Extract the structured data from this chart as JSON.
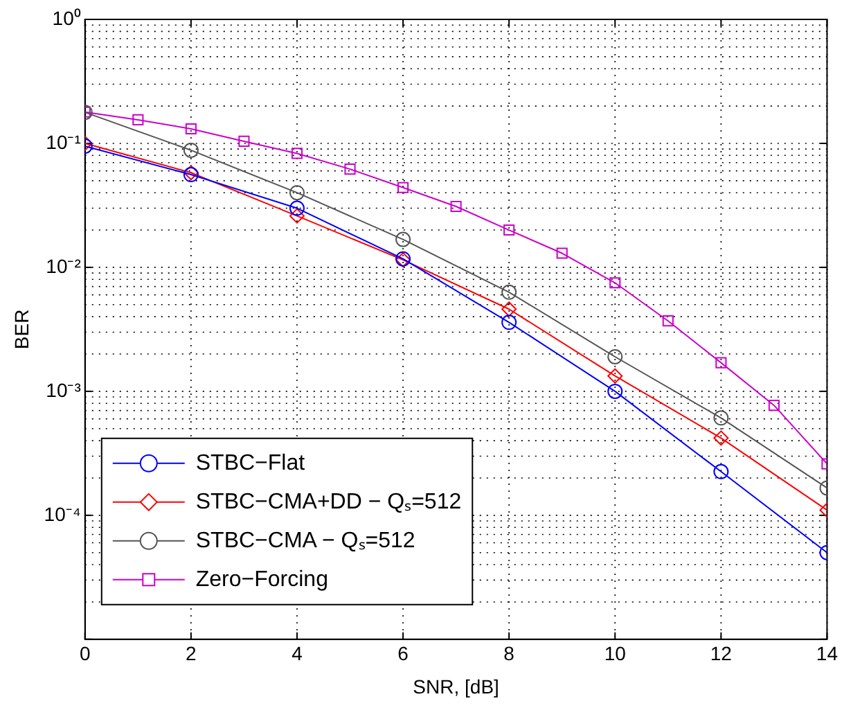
{
  "chart_data": {
    "type": "line",
    "xlabel": "SNR, [dB]",
    "ylabel": "BER",
    "log": "y",
    "grid": true,
    "legend": "bottom left",
    "line_style": "solid",
    "xlim": [
      0,
      14
    ],
    "xticks": [
      0,
      2,
      4,
      6,
      8,
      10,
      12,
      14
    ],
    "ylim": [
      1e-05,
      1
    ],
    "yticks": [
      {
        "value": 1e-05,
        "label": null
      },
      {
        "value": 0.0001,
        "label": "10⁻⁴"
      },
      {
        "value": 0.001,
        "label": "10⁻³"
      },
      {
        "value": 0.01,
        "label": "10⁻²"
      },
      {
        "value": 0.1,
        "label": "10⁻¹"
      },
      {
        "value": 1,
        "label": "10⁰"
      }
    ],
    "series": [
      {
        "name": "STBC−Flat",
        "color": "#0000ff",
        "marker": "circle",
        "x": [
          0,
          2,
          4,
          6,
          8,
          10,
          12,
          14
        ],
        "values": [
          0.095,
          0.056,
          0.03,
          0.0117,
          0.0036,
          0.001,
          0.000225,
          5e-05
        ]
      },
      {
        "name": "STBC−CMA+DD − Qₛ=512",
        "color": "#ff0000",
        "marker": "diamond",
        "x": [
          0,
          2,
          4,
          6,
          8,
          10,
          12,
          14
        ],
        "values": [
          0.1,
          0.058,
          0.026,
          0.0115,
          0.0046,
          0.00133,
          0.00042,
          0.00011
        ]
      },
      {
        "name": "STBC−CMA − Qₛ=512",
        "color": "#555555",
        "marker": "circle",
        "x": [
          0,
          2,
          4,
          6,
          8,
          10,
          12,
          14
        ],
        "values": [
          0.178,
          0.088,
          0.04,
          0.0168,
          0.0063,
          0.0019,
          0.00061,
          0.000166
        ]
      },
      {
        "name": "Zero−Forcing",
        "color": "#cc00cc",
        "marker": "square",
        "x": [
          0,
          1,
          2,
          3,
          4,
          5,
          6,
          7,
          8,
          9,
          10,
          11,
          12,
          13,
          14
        ],
        "values": [
          0.179,
          0.155,
          0.131,
          0.104,
          0.083,
          0.062,
          0.044,
          0.031,
          0.02,
          0.013,
          0.0075,
          0.0037,
          0.0017,
          0.00077,
          0.00026
        ]
      }
    ]
  }
}
